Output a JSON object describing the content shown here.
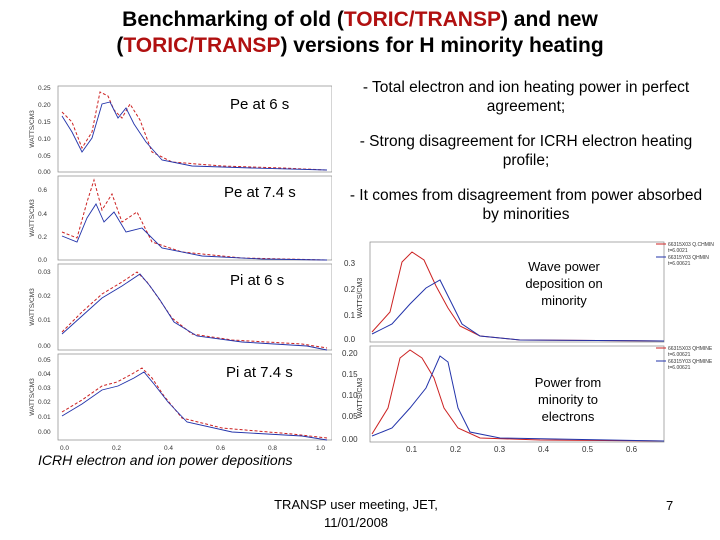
{
  "title": {
    "line1_pre": "Benchmarking of old (",
    "line1_hl": "TORIC/TRANSP",
    "line1_post": ") and new",
    "line2_pre": "(",
    "line2_hl": "TORIC/TRANSP",
    "line2_post": ") versions for H minority heating"
  },
  "bullets": [
    "- Total electron and ion heating power in perfect agreement;",
    "- Strong disagreement for ICRH electron heating profile;",
    "- It comes from disagreement from power absorbed by minorities"
  ],
  "left_panels": [
    {
      "label": "Pe at 6 s",
      "ylabel": "WATTS/CM3",
      "ticks": [
        "0.25",
        "0.20",
        "0.15",
        "0.10",
        "0.05",
        "0.00"
      ]
    },
    {
      "label": "Pe at 7.4 s",
      "ylabel": "WATTS/CM3",
      "ticks": [
        "0.6",
        "0.4",
        "0.2",
        "0.0"
      ]
    },
    {
      "label": "Pi at 6 s",
      "ylabel": "WATTS/CM3",
      "ticks": [
        "0.03",
        "0.02",
        "0.01",
        "0.00"
      ]
    },
    {
      "label": "Pi at 7.4 s",
      "ylabel": "WATTS/CM3",
      "ticks": [
        "0.05",
        "0.04",
        "0.03",
        "0.02",
        "0.01",
        "0.00"
      ]
    }
  ],
  "left_xticks": [
    "0.0",
    "0.2",
    "0.4",
    "0.6",
    "0.8",
    "1.0"
  ],
  "right_panels": [
    {
      "note": "Wave power deposition on minority",
      "ylabel": "WATTS/CM3",
      "ticks": [
        "0.3",
        "0.2",
        "0.1",
        "0.0"
      ],
      "legend": [
        "66315X03 Q.CHMIN",
        "t=6.0021",
        "66315Y03 QHMIN",
        "t=6.00621"
      ]
    },
    {
      "note": "Power from minority to electrons",
      "ylabel": "WATTS/CM3",
      "ticks": [
        "0.20",
        "0.15",
        "0.10",
        "0.05",
        "0.00"
      ],
      "legend": [
        "66315X03 QHMINE",
        "t=6.00621",
        "66315Y03 QHMINE",
        "t=6.00621"
      ]
    }
  ],
  "right_xticks": [
    "0.1",
    "0.2",
    "0.3",
    "0.4",
    "0.5",
    "0.6"
  ],
  "caption": "ICRH electron and ion power depositions",
  "footer": {
    "line1": "TRANSP user meeting, JET,",
    "line2": "11/01/2008"
  },
  "page_number": "7",
  "colors": {
    "accent": "#b01010",
    "series_old": "#cc2222",
    "series_new": "#2233aa"
  }
}
